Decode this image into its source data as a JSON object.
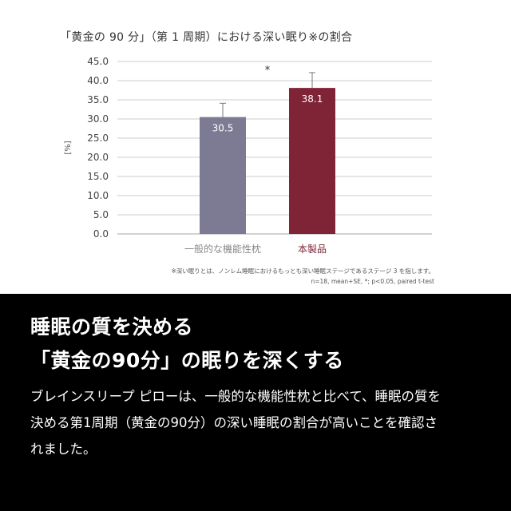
{
  "chart_data": {
    "type": "bar",
    "title": "「黄金の 90 分」（第 1 周期）における深い眠り※の割合",
    "ylabel": "[%]",
    "ylim": [
      0,
      45
    ],
    "yticks": [
      "0.0",
      "5.0",
      "10.0",
      "15.0",
      "20.0",
      "25.0",
      "30.0",
      "35.0",
      "40.0",
      "45.0"
    ],
    "categories": [
      "一般的な機能性枕",
      "本製品"
    ],
    "values": [
      30.5,
      38.1
    ],
    "errors": [
      3.6,
      4.0
    ],
    "value_labels": [
      "30.5",
      "38.1"
    ],
    "colors": [
      "#7d7b93",
      "#7f2436"
    ],
    "category_label_colors": [
      "#888888",
      "#7f2436"
    ],
    "significance_marker": "*",
    "grid": true
  },
  "footnote": {
    "line1": "※深い眠りとは、ノンレム睡眠におけるもっとも深い睡眠ステージであるステージ 3 を指します。",
    "line2": "n=18, mean+SE, *; p<0.05, paired t-test"
  },
  "headline": {
    "line1": "睡眠の質を決める",
    "line2": "「黄金の90分」の眠りを深くする"
  },
  "body": {
    "line1": "ブレインスリープ ピローは、一般的な機能性枕と比べて、睡眠の質を",
    "line2": "決める第1周期（黄金の90分）の深い睡眠の割合が高いことを確認さ",
    "line3": "れました。"
  }
}
